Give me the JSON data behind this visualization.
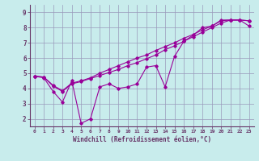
{
  "xlabel": "Windchill (Refroidissement éolien,°C)",
  "bg_color": "#c8ecec",
  "grid_color": "#9999bb",
  "line_color": "#990099",
  "axis_color": "#663366",
  "xlim": [
    -0.5,
    23.5
  ],
  "ylim": [
    1.5,
    9.5
  ],
  "xticks": [
    0,
    1,
    2,
    3,
    4,
    5,
    6,
    7,
    8,
    9,
    10,
    11,
    12,
    13,
    14,
    15,
    16,
    17,
    18,
    19,
    20,
    21,
    22,
    23
  ],
  "yticks": [
    2,
    3,
    4,
    5,
    6,
    7,
    8,
    9
  ],
  "line1_x": [
    0,
    1,
    2,
    3,
    4,
    5,
    6,
    7,
    8,
    9,
    10,
    11,
    12,
    13,
    14,
    15,
    16,
    17,
    18,
    19,
    20,
    21,
    22,
    23
  ],
  "line1_y": [
    4.8,
    4.7,
    3.8,
    3.1,
    4.5,
    1.7,
    2.0,
    4.1,
    4.3,
    4.0,
    4.1,
    4.3,
    5.4,
    5.5,
    4.1,
    6.1,
    7.1,
    7.5,
    8.0,
    8.1,
    8.5,
    8.5,
    8.5,
    8.1
  ],
  "line2_x": [
    0,
    1,
    2,
    3,
    4,
    5,
    6,
    7,
    8,
    9,
    10,
    11,
    12,
    13,
    14,
    15,
    16,
    17,
    18,
    19,
    20,
    21,
    22,
    23
  ],
  "line2_y": [
    4.8,
    4.75,
    4.2,
    3.85,
    4.35,
    4.5,
    4.7,
    5.0,
    5.25,
    5.5,
    5.75,
    6.0,
    6.2,
    6.5,
    6.75,
    7.0,
    7.3,
    7.55,
    7.85,
    8.1,
    8.45,
    8.5,
    8.5,
    8.45
  ],
  "line3_x": [
    0,
    1,
    2,
    3,
    4,
    5,
    6,
    7,
    8,
    9,
    10,
    11,
    12,
    13,
    14,
    15,
    16,
    17,
    18,
    19,
    20,
    21,
    22,
    23
  ],
  "line3_y": [
    4.8,
    4.75,
    4.15,
    3.8,
    4.3,
    4.45,
    4.65,
    4.85,
    5.05,
    5.25,
    5.5,
    5.7,
    5.95,
    6.2,
    6.55,
    6.8,
    7.1,
    7.4,
    7.7,
    8.0,
    8.3,
    8.5,
    8.5,
    8.45
  ]
}
